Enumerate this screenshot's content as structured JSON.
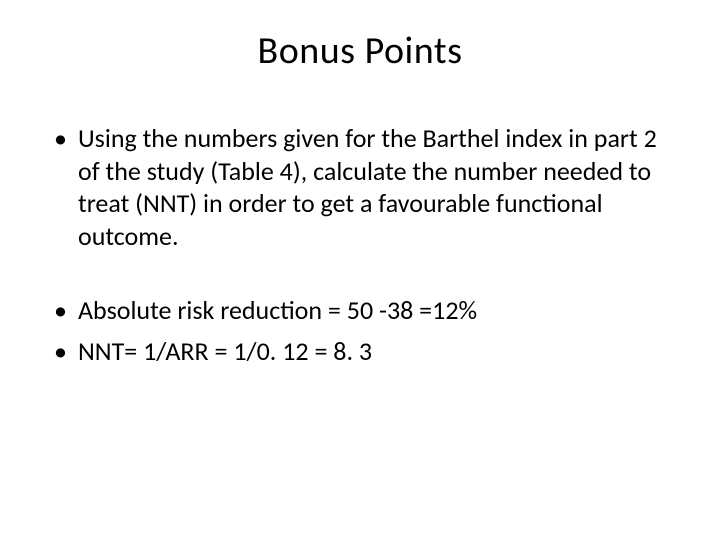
{
  "slide": {
    "title": "Bonus Points",
    "bullets": [
      "Using the numbers given for the Barthel index in part 2 of the study (Table 4), calculate the number needed to treat (NNT) in order to get a favourable functional outcome.",
      "Absolute risk reduction = 50 -38 =12%",
      "NNT= 1/ARR = 1/0. 12 = 8. 3"
    ]
  },
  "style": {
    "background_color": "#ffffff",
    "text_color": "#000000",
    "title_fontsize_pt": 38,
    "body_fontsize_pt": 26,
    "font_family": "Calibri"
  }
}
